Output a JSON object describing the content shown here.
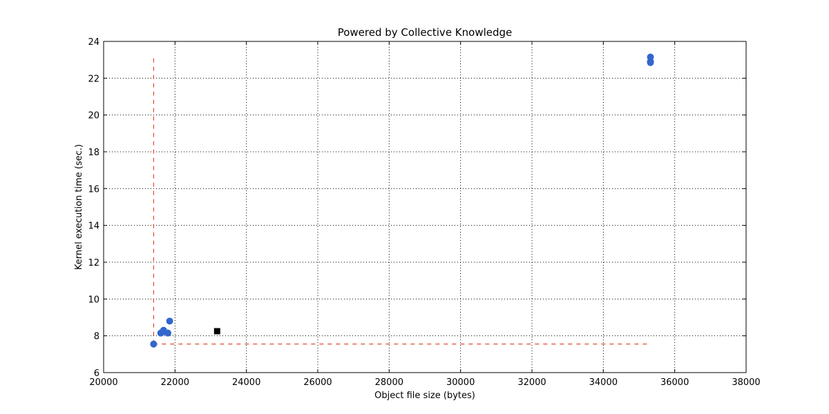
{
  "chart_data": {
    "type": "scatter",
    "title": "Powered by Collective Knowledge",
    "xlabel": "Object file size (bytes)",
    "ylabel": "Kernel execution time (sec.)",
    "xlim": [
      20000,
      38000
    ],
    "ylim": [
      6,
      24
    ],
    "xticks": [
      20000,
      22000,
      24000,
      26000,
      28000,
      30000,
      32000,
      34000,
      36000,
      38000
    ],
    "yticks": [
      6,
      8,
      10,
      12,
      14,
      16,
      18,
      20,
      22,
      24
    ],
    "grid": true,
    "series": [
      {
        "marker": "circle",
        "color": "#3366cc",
        "points": [
          {
            "x": 21400,
            "y": 7.55
          },
          {
            "x": 21600,
            "y": 8.15
          },
          {
            "x": 21650,
            "y": 8.2
          },
          {
            "x": 21680,
            "y": 8.3
          },
          {
            "x": 21800,
            "y": 8.15
          },
          {
            "x": 21850,
            "y": 8.8
          },
          {
            "x": 35320,
            "y": 22.85
          },
          {
            "x": 35320,
            "y": 22.9
          },
          {
            "x": 35320,
            "y": 23.15
          }
        ]
      },
      {
        "marker": "square",
        "color": "#000000",
        "points": [
          {
            "x": 23180,
            "y": 8.25
          }
        ]
      }
    ],
    "pareto_lines": {
      "color": "#dd2200",
      "style": "dashed",
      "vertical": {
        "x": 21400,
        "y_from": 7.55,
        "y_to": 23.15
      },
      "horizontal": {
        "y": 7.55,
        "x_from": 21400,
        "x_to": 35320
      }
    }
  }
}
